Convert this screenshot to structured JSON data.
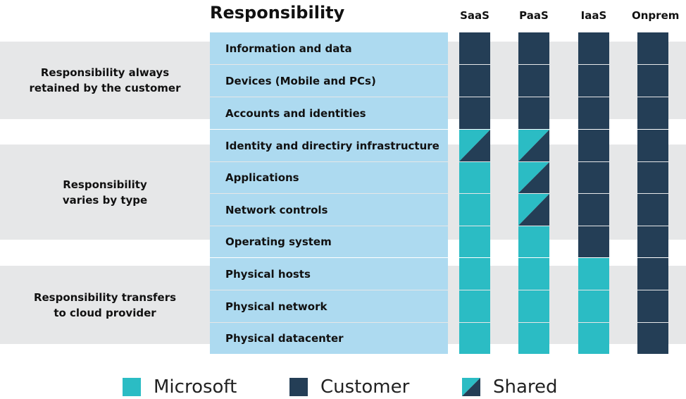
{
  "heading": "Responsibility",
  "columns": [
    "SaaS",
    "PaaS",
    "IaaS",
    "Onprem"
  ],
  "groups": [
    {
      "label_line1": "Responsibility always",
      "label_line2": "retained by the customer"
    },
    {
      "label_line1": "Responsibility",
      "label_line2": "varies by type"
    },
    {
      "label_line1": "Responsibility transfers",
      "label_line2": "to cloud provider"
    }
  ],
  "rows": [
    {
      "label": "Information and data",
      "cells": [
        "customer",
        "customer",
        "customer",
        "customer"
      ]
    },
    {
      "label": "Devices (Mobile and PCs)",
      "cells": [
        "customer",
        "customer",
        "customer",
        "customer"
      ]
    },
    {
      "label": "Accounts and identities",
      "cells": [
        "customer",
        "customer",
        "customer",
        "customer"
      ]
    },
    {
      "label": "Identity and directiry infrastructure",
      "cells": [
        "shared",
        "shared",
        "customer",
        "customer"
      ]
    },
    {
      "label": "Applications",
      "cells": [
        "microsoft",
        "shared",
        "customer",
        "customer"
      ]
    },
    {
      "label": "Network controls",
      "cells": [
        "microsoft",
        "shared",
        "customer",
        "customer"
      ]
    },
    {
      "label": "Operating system",
      "cells": [
        "microsoft",
        "microsoft",
        "customer",
        "customer"
      ]
    },
    {
      "label": "Physical hosts",
      "cells": [
        "microsoft",
        "microsoft",
        "microsoft",
        "customer"
      ]
    },
    {
      "label": "Physical network",
      "cells": [
        "microsoft",
        "microsoft",
        "microsoft",
        "customer"
      ]
    },
    {
      "label": "Physical datacenter",
      "cells": [
        "microsoft",
        "microsoft",
        "microsoft",
        "customer"
      ]
    }
  ],
  "legend": {
    "microsoft": "Microsoft",
    "customer": "Customer",
    "shared": "Shared"
  },
  "colors": {
    "microsoft": "#2bbcc4",
    "customer": "#243e56",
    "shared_top": "#2bbcc4",
    "shared_bottom": "#243e56",
    "row_label_bg": "#addaf0",
    "group_band_bg": "#e6e7e8"
  }
}
